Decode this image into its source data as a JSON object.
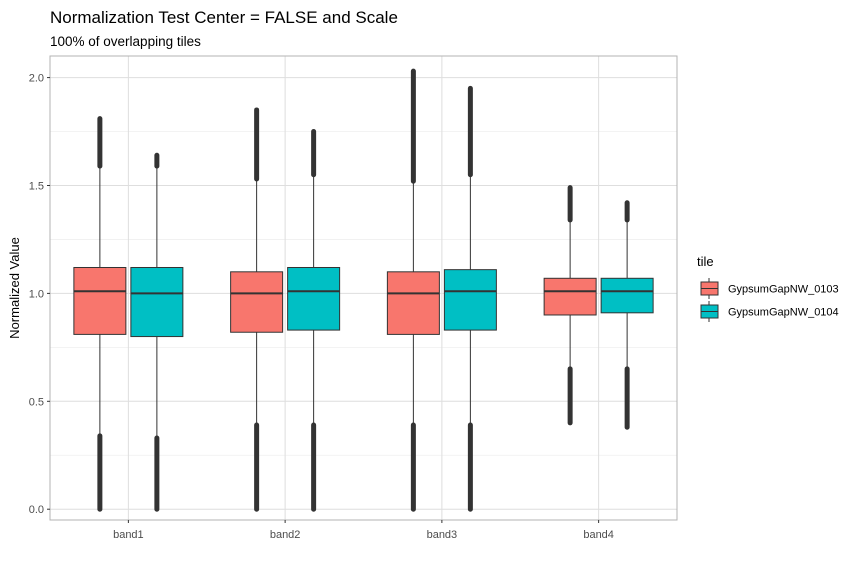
{
  "chart_data": {
    "type": "boxplot",
    "title": "Normalization Test Center = FALSE and Scale",
    "subtitle": "100% of overlapping tiles",
    "xlabel": "",
    "ylabel": "Normalized Value",
    "categories": [
      "band1",
      "band2",
      "band3",
      "band4"
    ],
    "ylim": [
      -0.05,
      2.1
    ],
    "yticks": [
      "0.0",
      "0.5",
      "1.0",
      "1.5",
      "2.0"
    ],
    "grid": true,
    "legend": {
      "title": "tile",
      "position": "right"
    },
    "series": [
      {
        "name": "GypsumGapNW_0103",
        "color": "#F8766D",
        "boxes": [
          {
            "whisker_low": 0.34,
            "q1": 0.81,
            "median": 1.01,
            "q3": 1.12,
            "whisker_high": 1.59,
            "outlier_low_range": [
              0.0,
              0.34
            ],
            "outlier_high_range": [
              1.59,
              1.81
            ]
          },
          {
            "whisker_low": 0.39,
            "q1": 0.82,
            "median": 1.0,
            "q3": 1.1,
            "whisker_high": 1.53,
            "outlier_low_range": [
              0.0,
              0.39
            ],
            "outlier_high_range": [
              1.53,
              1.85
            ]
          },
          {
            "whisker_low": 0.39,
            "q1": 0.81,
            "median": 1.0,
            "q3": 1.1,
            "whisker_high": 1.52,
            "outlier_low_range": [
              0.0,
              0.39
            ],
            "outlier_high_range": [
              1.52,
              2.03
            ]
          },
          {
            "whisker_low": 0.65,
            "q1": 0.9,
            "median": 1.01,
            "q3": 1.07,
            "whisker_high": 1.34,
            "outlier_low_range": [
              0.4,
              0.65
            ],
            "outlier_high_range": [
              1.34,
              1.49
            ]
          }
        ]
      },
      {
        "name": "GypsumGapNW_0104",
        "color": "#00BFC4",
        "boxes": [
          {
            "whisker_low": 0.33,
            "q1": 0.8,
            "median": 1.0,
            "q3": 1.12,
            "whisker_high": 1.59,
            "outlier_low_range": [
              0.0,
              0.33
            ],
            "outlier_high_range": [
              1.59,
              1.64
            ]
          },
          {
            "whisker_low": 0.39,
            "q1": 0.83,
            "median": 1.01,
            "q3": 1.12,
            "whisker_high": 1.55,
            "outlier_low_range": [
              0.0,
              0.39
            ],
            "outlier_high_range": [
              1.55,
              1.75
            ]
          },
          {
            "whisker_low": 0.39,
            "q1": 0.83,
            "median": 1.01,
            "q3": 1.11,
            "whisker_high": 1.55,
            "outlier_low_range": [
              0.0,
              0.39
            ],
            "outlier_high_range": [
              1.55,
              1.95
            ]
          },
          {
            "whisker_low": 0.65,
            "q1": 0.91,
            "median": 1.01,
            "q3": 1.07,
            "whisker_high": 1.34,
            "outlier_low_range": [
              0.38,
              0.65
            ],
            "outlier_high_range": [
              1.34,
              1.42
            ]
          }
        ]
      }
    ]
  }
}
